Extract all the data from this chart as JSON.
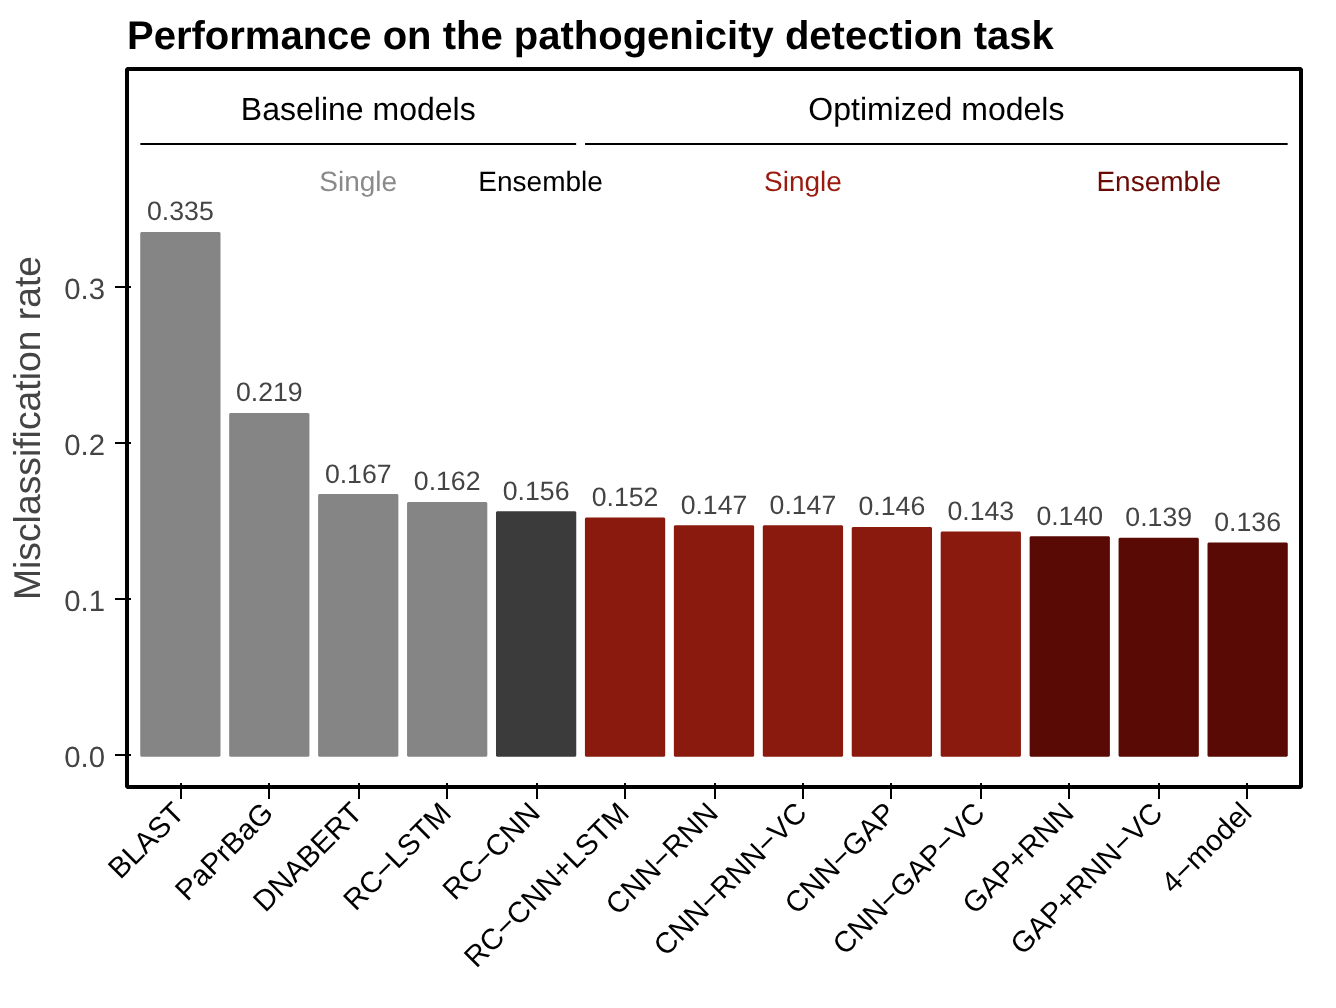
{
  "chart_data": {
    "type": "bar",
    "title": "Performance on the pathogenicity detection task",
    "ylabel": "Misclassification rate",
    "categories": [
      "BLAST",
      "PaPrBaG",
      "DNABERT",
      "RC−LSTM",
      "RC−CNN",
      "RC−CNN+LSTM",
      "CNN−RNN",
      "CNN−RNN−VC",
      "CNN−GAP",
      "CNN−GAP−VC",
      "GAP+RNN",
      "GAP+RNN−VC",
      "4−model"
    ],
    "values": [
      0.335,
      0.219,
      0.167,
      0.162,
      0.156,
      0.152,
      0.147,
      0.147,
      0.146,
      0.143,
      0.14,
      0.139,
      0.136
    ],
    "value_labels": [
      "0.335",
      "0.219",
      "0.167",
      "0.162",
      "0.156",
      "0.152",
      "0.147",
      "0.147",
      "0.146",
      "0.143",
      "0.140",
      "0.139",
      "0.136"
    ],
    "colors": [
      "#858585",
      "#858585",
      "#858585",
      "#858585",
      "#3b3b3b",
      "#8b1a0e",
      "#8b1a0e",
      "#8b1a0e",
      "#8b1a0e",
      "#8b1a0e",
      "#5a0a04",
      "#5a0a04",
      "#5a0a04"
    ],
    "ylim": [
      -0.02,
      0.44
    ],
    "yticks": [
      {
        "value": 0,
        "label": "0.0"
      },
      {
        "value": 0.1,
        "label": "0.1"
      },
      {
        "value": 0.2,
        "label": "0.2"
      },
      {
        "value": 0.3,
        "label": "0.3"
      }
    ],
    "annotations": [
      "Baseline models",
      "Optimized models",
      "Single",
      "Ensemble",
      "Single",
      "Ensemble"
    ],
    "grid": false
  }
}
